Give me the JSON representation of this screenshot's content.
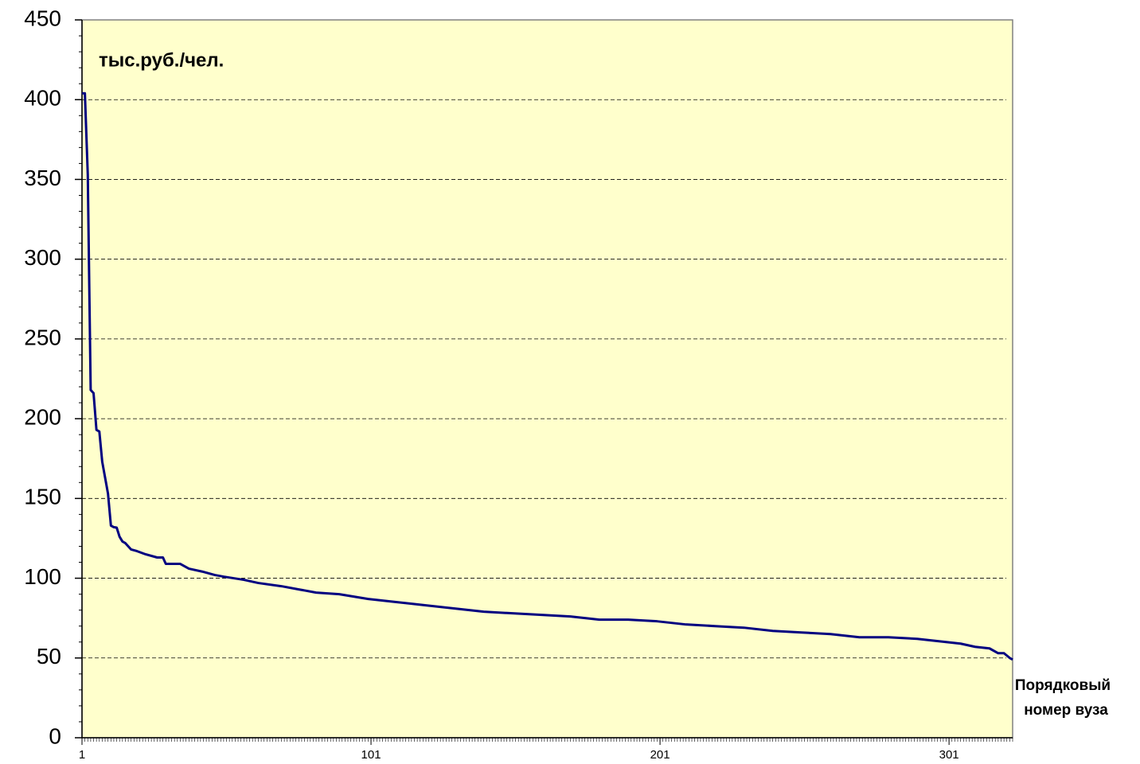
{
  "chart_data": {
    "type": "line",
    "y_label": "тыс.руб./чел.",
    "x_label": [
      "Порядковый",
      "номер вуза"
    ],
    "x": [
      1,
      2,
      3,
      4,
      5,
      6,
      7,
      8,
      10,
      11,
      12,
      13,
      14,
      15,
      16,
      18,
      20,
      23,
      27,
      29,
      30,
      35,
      38,
      43,
      47,
      50,
      57,
      62,
      70,
      76,
      82,
      90,
      100,
      110,
      120,
      130,
      140,
      150,
      160,
      170,
      180,
      190,
      200,
      210,
      220,
      230,
      240,
      250,
      260,
      270,
      280,
      290,
      300,
      305,
      310,
      315,
      318,
      320,
      322,
      323
    ],
    "series": [
      {
        "name": "тыс.руб./чел.",
        "color": "#000080",
        "values": [
          404,
          404,
          353,
          218,
          216,
          193,
          192,
          173,
          153,
          133,
          132,
          131.7,
          126,
          123,
          122,
          118,
          117,
          115,
          113,
          113,
          109,
          109,
          106,
          104,
          102,
          101,
          99,
          97,
          95,
          93,
          91,
          90,
          87,
          85,
          83,
          81,
          79,
          78,
          77,
          76,
          74,
          74,
          73,
          71,
          70,
          69,
          67,
          66,
          65,
          63,
          63,
          62,
          60,
          59,
          57,
          56,
          53,
          53,
          50,
          49
        ]
      }
    ],
    "xlim": [
      1,
      323
    ],
    "xticks": [
      1,
      101,
      201,
      301
    ],
    "ylim": [
      0,
      450
    ],
    "yticks": [
      0,
      50,
      100,
      150,
      200,
      250,
      300,
      350,
      400,
      450
    ],
    "grid": true,
    "plot_background": "#ffffcc"
  }
}
